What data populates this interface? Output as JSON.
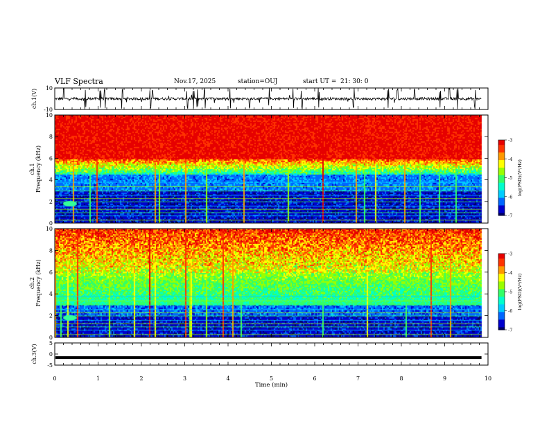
{
  "header": {
    "title": "VLF Spectra",
    "date": "Nov.17, 2025",
    "station": "station=OUJ",
    "start_label": "start  UT =",
    "start_value": "21: 30: 0"
  },
  "colors": {
    "colormap": [
      "#000066",
      "#0000cc",
      "#0066ff",
      "#00ccff",
      "#00ffcc",
      "#33ff66",
      "#99ff00",
      "#ffff00",
      "#ff9900",
      "#ff3300",
      "#e60000"
    ]
  },
  "chart_data": [
    {
      "type": "line",
      "panel": "ch1-waveform",
      "ylabel": "ch.1(V)",
      "ylim": [
        -10,
        10
      ],
      "yticks": [
        "10",
        "-10"
      ],
      "x_range": [
        0,
        9.85
      ],
      "baseline": 0,
      "amplitude_typical": 1.5,
      "spike_times": [
        0.2,
        0.7,
        1.05,
        1.15,
        1.55,
        2.2,
        2.25,
        3.05,
        3.2,
        3.3,
        3.45,
        4.05,
        4.5,
        4.95,
        5.5,
        5.7,
        6.1,
        6.9,
        7.7,
        7.9,
        8.3,
        8.9,
        9.1,
        9.3,
        9.7
      ]
    },
    {
      "type": "heatmap",
      "panel": "ch1-spectrogram",
      "ylabel": "Frequency (kHz)",
      "channel_label": "ch.1",
      "ylim": [
        0,
        10
      ],
      "yticks": [
        "0",
        "2",
        "4",
        "6",
        "8",
        "10"
      ],
      "x_range": [
        0,
        9.85
      ],
      "colorbar": {
        "label": "log(PSD)(V²/Hz)",
        "range": [
          -7,
          -3
        ],
        "ticks": [
          "-3",
          "-4",
          "-5",
          "-6",
          "-7"
        ]
      }
    },
    {
      "type": "heatmap",
      "panel": "ch2-spectrogram",
      "ylabel": "Frequency (kHz)",
      "channel_label": "ch.2",
      "ylim": [
        0,
        10
      ],
      "yticks": [
        "0",
        "2",
        "4",
        "6",
        "8",
        "10"
      ],
      "x_range": [
        0,
        9.85
      ],
      "colorbar": {
        "label": "log(PSD)(V²/Hz)",
        "range": [
          -7,
          -3
        ],
        "ticks": [
          "-3",
          "-4",
          "-5",
          "-6",
          "-7"
        ]
      }
    },
    {
      "type": "line",
      "panel": "ch3-waveform",
      "ylabel": "ch.3(V)",
      "ylim": [
        -5,
        5
      ],
      "yticks": [
        "5",
        "0",
        "-5"
      ],
      "x_range": [
        0,
        9.85
      ],
      "constant_value": -1.6
    }
  ],
  "xaxis": {
    "label": "Time (min)",
    "xlim": [
      0,
      10
    ],
    "ticks": [
      "0",
      "1",
      "2",
      "3",
      "4",
      "5",
      "6",
      "7",
      "8",
      "9",
      "10"
    ]
  }
}
